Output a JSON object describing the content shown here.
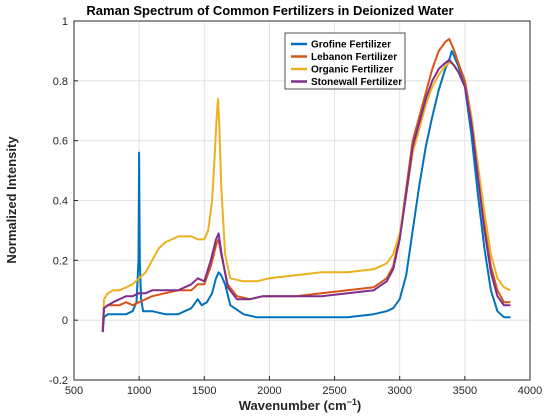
{
  "chart_data": {
    "type": "line",
    "title": "Raman Spectrum of Common Fertilizers in Deionized Water",
    "xlabel": "Wavenumber (cm",
    "xlabel_superscript": "−1",
    "xlabel_close": ")",
    "ylabel": "Normalized Intensity",
    "xlim": [
      500,
      4000
    ],
    "ylim": [
      -0.2,
      1
    ],
    "xticks": [
      500,
      1000,
      1500,
      2000,
      2500,
      3000,
      3500,
      4000
    ],
    "xtick_labels": [
      "500",
      "1000",
      "1500",
      "2000",
      "2500",
      "3000",
      "3500",
      "4000"
    ],
    "yticks": [
      -0.2,
      0,
      0.2,
      0.4,
      0.6,
      0.8,
      1
    ],
    "ytick_labels": [
      "-0.2",
      "0",
      "0.2",
      "0.4",
      "0.6",
      "0.8",
      "1"
    ],
    "grid": true,
    "legend_position": "top-center",
    "series": [
      {
        "name": "Grofine Fertilizer",
        "color": "#0072BD",
        "x": [
          720,
          730,
          760,
          800,
          850,
          900,
          950,
          980,
          995,
          1000,
          1005,
          1015,
          1030,
          1100,
          1200,
          1300,
          1400,
          1450,
          1480,
          1520,
          1560,
          1590,
          1610,
          1630,
          1660,
          1700,
          1800,
          1900,
          2000,
          2200,
          2400,
          2600,
          2800,
          2900,
          2950,
          3000,
          3050,
          3100,
          3150,
          3200,
          3250,
          3300,
          3350,
          3380,
          3400,
          3420,
          3450,
          3500,
          3550,
          3600,
          3650,
          3700,
          3750,
          3800,
          3850
        ],
        "y": [
          -0.04,
          0.01,
          0.02,
          0.02,
          0.02,
          0.02,
          0.03,
          0.06,
          0.2,
          0.56,
          0.2,
          0.07,
          0.03,
          0.03,
          0.02,
          0.02,
          0.04,
          0.07,
          0.05,
          0.06,
          0.09,
          0.14,
          0.16,
          0.15,
          0.12,
          0.05,
          0.02,
          0.01,
          0.01,
          0.01,
          0.01,
          0.01,
          0.02,
          0.03,
          0.04,
          0.07,
          0.15,
          0.3,
          0.45,
          0.58,
          0.68,
          0.77,
          0.84,
          0.87,
          0.9,
          0.88,
          0.85,
          0.78,
          0.62,
          0.42,
          0.24,
          0.1,
          0.03,
          0.01,
          0.01
        ]
      },
      {
        "name": "Lebanon Fertilizer",
        "color": "#D95319",
        "x": [
          720,
          730,
          760,
          800,
          850,
          900,
          950,
          1000,
          1050,
          1100,
          1200,
          1300,
          1400,
          1450,
          1500,
          1550,
          1590,
          1610,
          1630,
          1680,
          1750,
          1850,
          1950,
          2050,
          2200,
          2400,
          2600,
          2800,
          2900,
          2950,
          3000,
          3050,
          3100,
          3150,
          3200,
          3250,
          3300,
          3350,
          3380,
          3400,
          3420,
          3450,
          3500,
          3550,
          3600,
          3650,
          3700,
          3750,
          3800,
          3850
        ],
        "y": [
          -0.03,
          0.04,
          0.05,
          0.05,
          0.05,
          0.06,
          0.05,
          0.06,
          0.07,
          0.08,
          0.09,
          0.1,
          0.1,
          0.12,
          0.12,
          0.18,
          0.25,
          0.27,
          0.22,
          0.12,
          0.08,
          0.07,
          0.08,
          0.08,
          0.08,
          0.09,
          0.1,
          0.11,
          0.14,
          0.18,
          0.28,
          0.44,
          0.6,
          0.68,
          0.76,
          0.84,
          0.9,
          0.93,
          0.94,
          0.92,
          0.9,
          0.86,
          0.8,
          0.68,
          0.5,
          0.32,
          0.18,
          0.1,
          0.06,
          0.06
        ]
      },
      {
        "name": "Organic Fertilizer",
        "color": "#EDB120",
        "x": [
          720,
          730,
          760,
          800,
          850,
          900,
          950,
          1000,
          1050,
          1100,
          1150,
          1200,
          1250,
          1300,
          1350,
          1400,
          1450,
          1500,
          1530,
          1560,
          1580,
          1595,
          1605,
          1615,
          1630,
          1660,
          1700,
          1800,
          1900,
          2000,
          2200,
          2400,
          2600,
          2800,
          2900,
          2950,
          3000,
          3050,
          3100,
          3150,
          3200,
          3250,
          3300,
          3350,
          3380,
          3400,
          3420,
          3450,
          3500,
          3550,
          3600,
          3650,
          3700,
          3750,
          3800,
          3850
        ],
        "y": [
          -0.03,
          0.07,
          0.09,
          0.1,
          0.1,
          0.11,
          0.12,
          0.14,
          0.16,
          0.2,
          0.24,
          0.26,
          0.27,
          0.28,
          0.28,
          0.28,
          0.27,
          0.27,
          0.3,
          0.4,
          0.55,
          0.68,
          0.74,
          0.65,
          0.45,
          0.22,
          0.14,
          0.13,
          0.13,
          0.14,
          0.15,
          0.16,
          0.16,
          0.17,
          0.19,
          0.22,
          0.29,
          0.42,
          0.56,
          0.64,
          0.72,
          0.78,
          0.82,
          0.85,
          0.86,
          0.86,
          0.85,
          0.83,
          0.78,
          0.68,
          0.52,
          0.36,
          0.22,
          0.14,
          0.11,
          0.1
        ]
      },
      {
        "name": "Stonewall Fertilizer",
        "color": "#7E2F8E",
        "x": [
          720,
          730,
          760,
          800,
          850,
          900,
          950,
          1000,
          1050,
          1100,
          1200,
          1300,
          1400,
          1450,
          1500,
          1550,
          1590,
          1610,
          1630,
          1680,
          1750,
          1850,
          1950,
          2050,
          2200,
          2400,
          2600,
          2800,
          2900,
          2950,
          3000,
          3050,
          3100,
          3150,
          3200,
          3250,
          3300,
          3350,
          3380,
          3400,
          3420,
          3450,
          3500,
          3550,
          3600,
          3650,
          3700,
          3750,
          3800,
          3850
        ],
        "y": [
          -0.04,
          0.04,
          0.05,
          0.06,
          0.07,
          0.08,
          0.08,
          0.09,
          0.09,
          0.1,
          0.1,
          0.1,
          0.12,
          0.14,
          0.13,
          0.2,
          0.27,
          0.29,
          0.23,
          0.11,
          0.07,
          0.07,
          0.08,
          0.08,
          0.08,
          0.08,
          0.09,
          0.1,
          0.13,
          0.17,
          0.27,
          0.42,
          0.58,
          0.66,
          0.74,
          0.8,
          0.84,
          0.86,
          0.87,
          0.86,
          0.85,
          0.83,
          0.78,
          0.66,
          0.48,
          0.3,
          0.16,
          0.08,
          0.05,
          0.05
        ]
      }
    ]
  }
}
